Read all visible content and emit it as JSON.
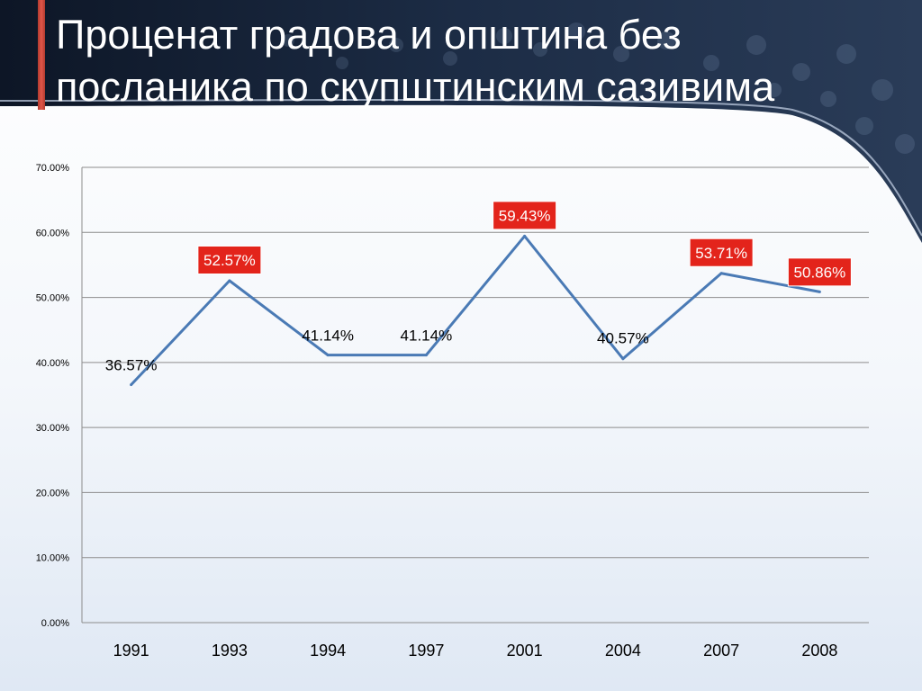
{
  "slide": {
    "title": "Проценат градова и општина без посланика по скупштинским сазивима"
  },
  "colors": {
    "line": "#4a7ab5",
    "label_highlight_bg": "#e3241b",
    "label_highlight_text": "#ffffff",
    "grid": "#8c8c8c",
    "banner_dark": "#152238",
    "accent": "#c0392b"
  },
  "chart_data": {
    "type": "line",
    "title": "",
    "xlabel": "",
    "ylabel": "",
    "categories": [
      "1991",
      "1993",
      "1994",
      "1997",
      "2001",
      "2004",
      "2007",
      "2008"
    ],
    "series": [
      {
        "values": [
          36.57,
          52.57,
          41.14,
          41.14,
          59.43,
          40.57,
          53.71,
          50.86
        ]
      }
    ],
    "data_labels": [
      "36.57%",
      "52.57%",
      "41.14%",
      "41.14%",
      "59.43%",
      "40.57%",
      "53.71%",
      "50.86%"
    ],
    "highlighted": [
      false,
      true,
      false,
      false,
      true,
      false,
      true,
      true
    ],
    "y_ticks": [
      "0.00%",
      "10.00%",
      "20.00%",
      "30.00%",
      "40.00%",
      "50.00%",
      "60.00%",
      "70.00%"
    ],
    "ylim": [
      0,
      70
    ],
    "grid": true,
    "legend": "none"
  }
}
